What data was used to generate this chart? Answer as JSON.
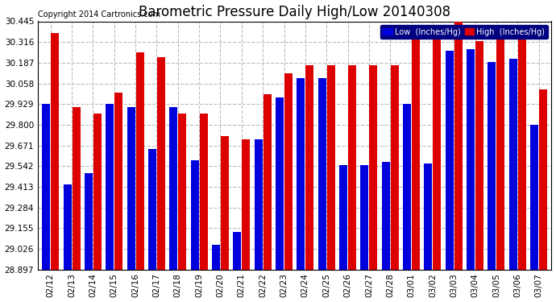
{
  "title": "Barometric Pressure Daily High/Low 20140308",
  "copyright": "Copyright 2014 Cartronics.com",
  "legend_low": "Low  (Inches/Hg)",
  "legend_high": "High  (Inches/Hg)",
  "dates": [
    "02/12",
    "02/13",
    "02/14",
    "02/15",
    "02/16",
    "02/17",
    "02/18",
    "02/19",
    "02/20",
    "02/21",
    "02/22",
    "02/23",
    "02/24",
    "02/25",
    "02/26",
    "02/27",
    "02/28",
    "03/01",
    "03/02",
    "03/03",
    "03/04",
    "03/05",
    "03/06",
    "03/07"
  ],
  "low_values": [
    29.93,
    29.43,
    29.5,
    29.93,
    29.91,
    29.65,
    29.91,
    29.58,
    29.05,
    29.13,
    29.71,
    29.97,
    30.09,
    30.09,
    29.55,
    29.55,
    29.57,
    29.93,
    29.56,
    30.26,
    30.27,
    30.19,
    30.21,
    29.8
  ],
  "high_values": [
    30.37,
    29.91,
    29.87,
    30.0,
    30.25,
    30.22,
    29.87,
    29.87,
    29.73,
    29.71,
    29.99,
    30.12,
    30.17,
    30.17,
    30.17,
    30.17,
    30.17,
    30.33,
    30.39,
    30.45,
    30.32,
    30.37,
    30.39,
    30.02
  ],
  "low_color": "#0000dd",
  "high_color": "#dd0000",
  "bg_color": "#ffffff",
  "plot_bg_color": "#ffffff",
  "grid_color": "#bbbbbb",
  "yticks": [
    28.897,
    29.026,
    29.155,
    29.284,
    29.413,
    29.542,
    29.671,
    29.8,
    29.929,
    30.058,
    30.187,
    30.316,
    30.445
  ],
  "ymin": 28.897,
  "ymax": 30.445,
  "title_fontsize": 12,
  "axis_fontsize": 7.5,
  "copyright_fontsize": 7
}
